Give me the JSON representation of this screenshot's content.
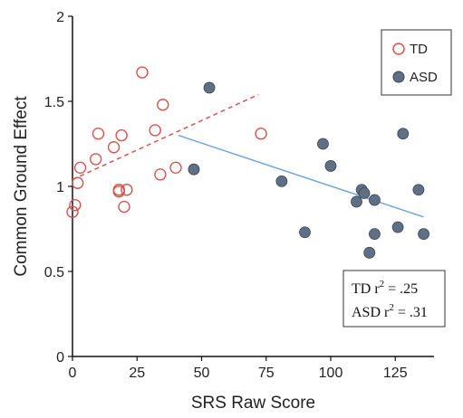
{
  "chart_data": {
    "type": "scatter",
    "xlabel": "SRS Raw Score",
    "ylabel": "Common Ground Effect",
    "xlim": [
      0,
      140
    ],
    "ylim": [
      0,
      2
    ],
    "x_ticks": [
      0,
      25,
      50,
      75,
      100,
      125
    ],
    "y_ticks": [
      0,
      0.5,
      1,
      1.5,
      2
    ],
    "y_tick_labels": [
      "0",
      "0.5",
      "1",
      "1.5",
      "2"
    ],
    "grid": false,
    "legend_position": "top-right",
    "series": [
      {
        "name": "TD",
        "marker": "open-circle",
        "color": "#d9534f",
        "points": [
          [
            0,
            0.85
          ],
          [
            1,
            0.89
          ],
          [
            2,
            1.02
          ],
          [
            3,
            1.11
          ],
          [
            9,
            1.16
          ],
          [
            10,
            1.31
          ],
          [
            16,
            1.23
          ],
          [
            18,
            0.97
          ],
          [
            18,
            0.98
          ],
          [
            19,
            1.3
          ],
          [
            20,
            0.88
          ],
          [
            21,
            0.98
          ],
          [
            27,
            1.67
          ],
          [
            32,
            1.33
          ],
          [
            34,
            1.07
          ],
          [
            35,
            1.48
          ],
          [
            40,
            1.11
          ],
          [
            73,
            1.31
          ]
        ],
        "trend": {
          "x": [
            0,
            72
          ],
          "y": [
            1.04,
            1.54
          ],
          "style": "dashed"
        }
      },
      {
        "name": "ASD",
        "marker": "filled-circle",
        "color": "#5f6f86",
        "points": [
          [
            47,
            1.1
          ],
          [
            53,
            1.58
          ],
          [
            81,
            1.03
          ],
          [
            90,
            0.73
          ],
          [
            97,
            1.25
          ],
          [
            100,
            1.12
          ],
          [
            110,
            0.91
          ],
          [
            112,
            0.98
          ],
          [
            113,
            0.96
          ],
          [
            115,
            0.61
          ],
          [
            117,
            0.72
          ],
          [
            117,
            0.92
          ],
          [
            126,
            0.76
          ],
          [
            128,
            1.31
          ],
          [
            134,
            0.98
          ],
          [
            136,
            0.72
          ]
        ],
        "trend": {
          "x": [
            41,
            136
          ],
          "y": [
            1.3,
            0.82
          ],
          "style": "solid"
        }
      }
    ],
    "annotations": [
      {
        "label": "TD r",
        "sup": "2",
        "value": " = .25"
      },
      {
        "label": "ASD r",
        "sup": "2",
        "value": " = .31"
      }
    ]
  },
  "colors": {
    "td": "#d9534f",
    "asd": "#5f6f86",
    "asd_trend": "#6fa8dc",
    "axis": "#111111"
  }
}
